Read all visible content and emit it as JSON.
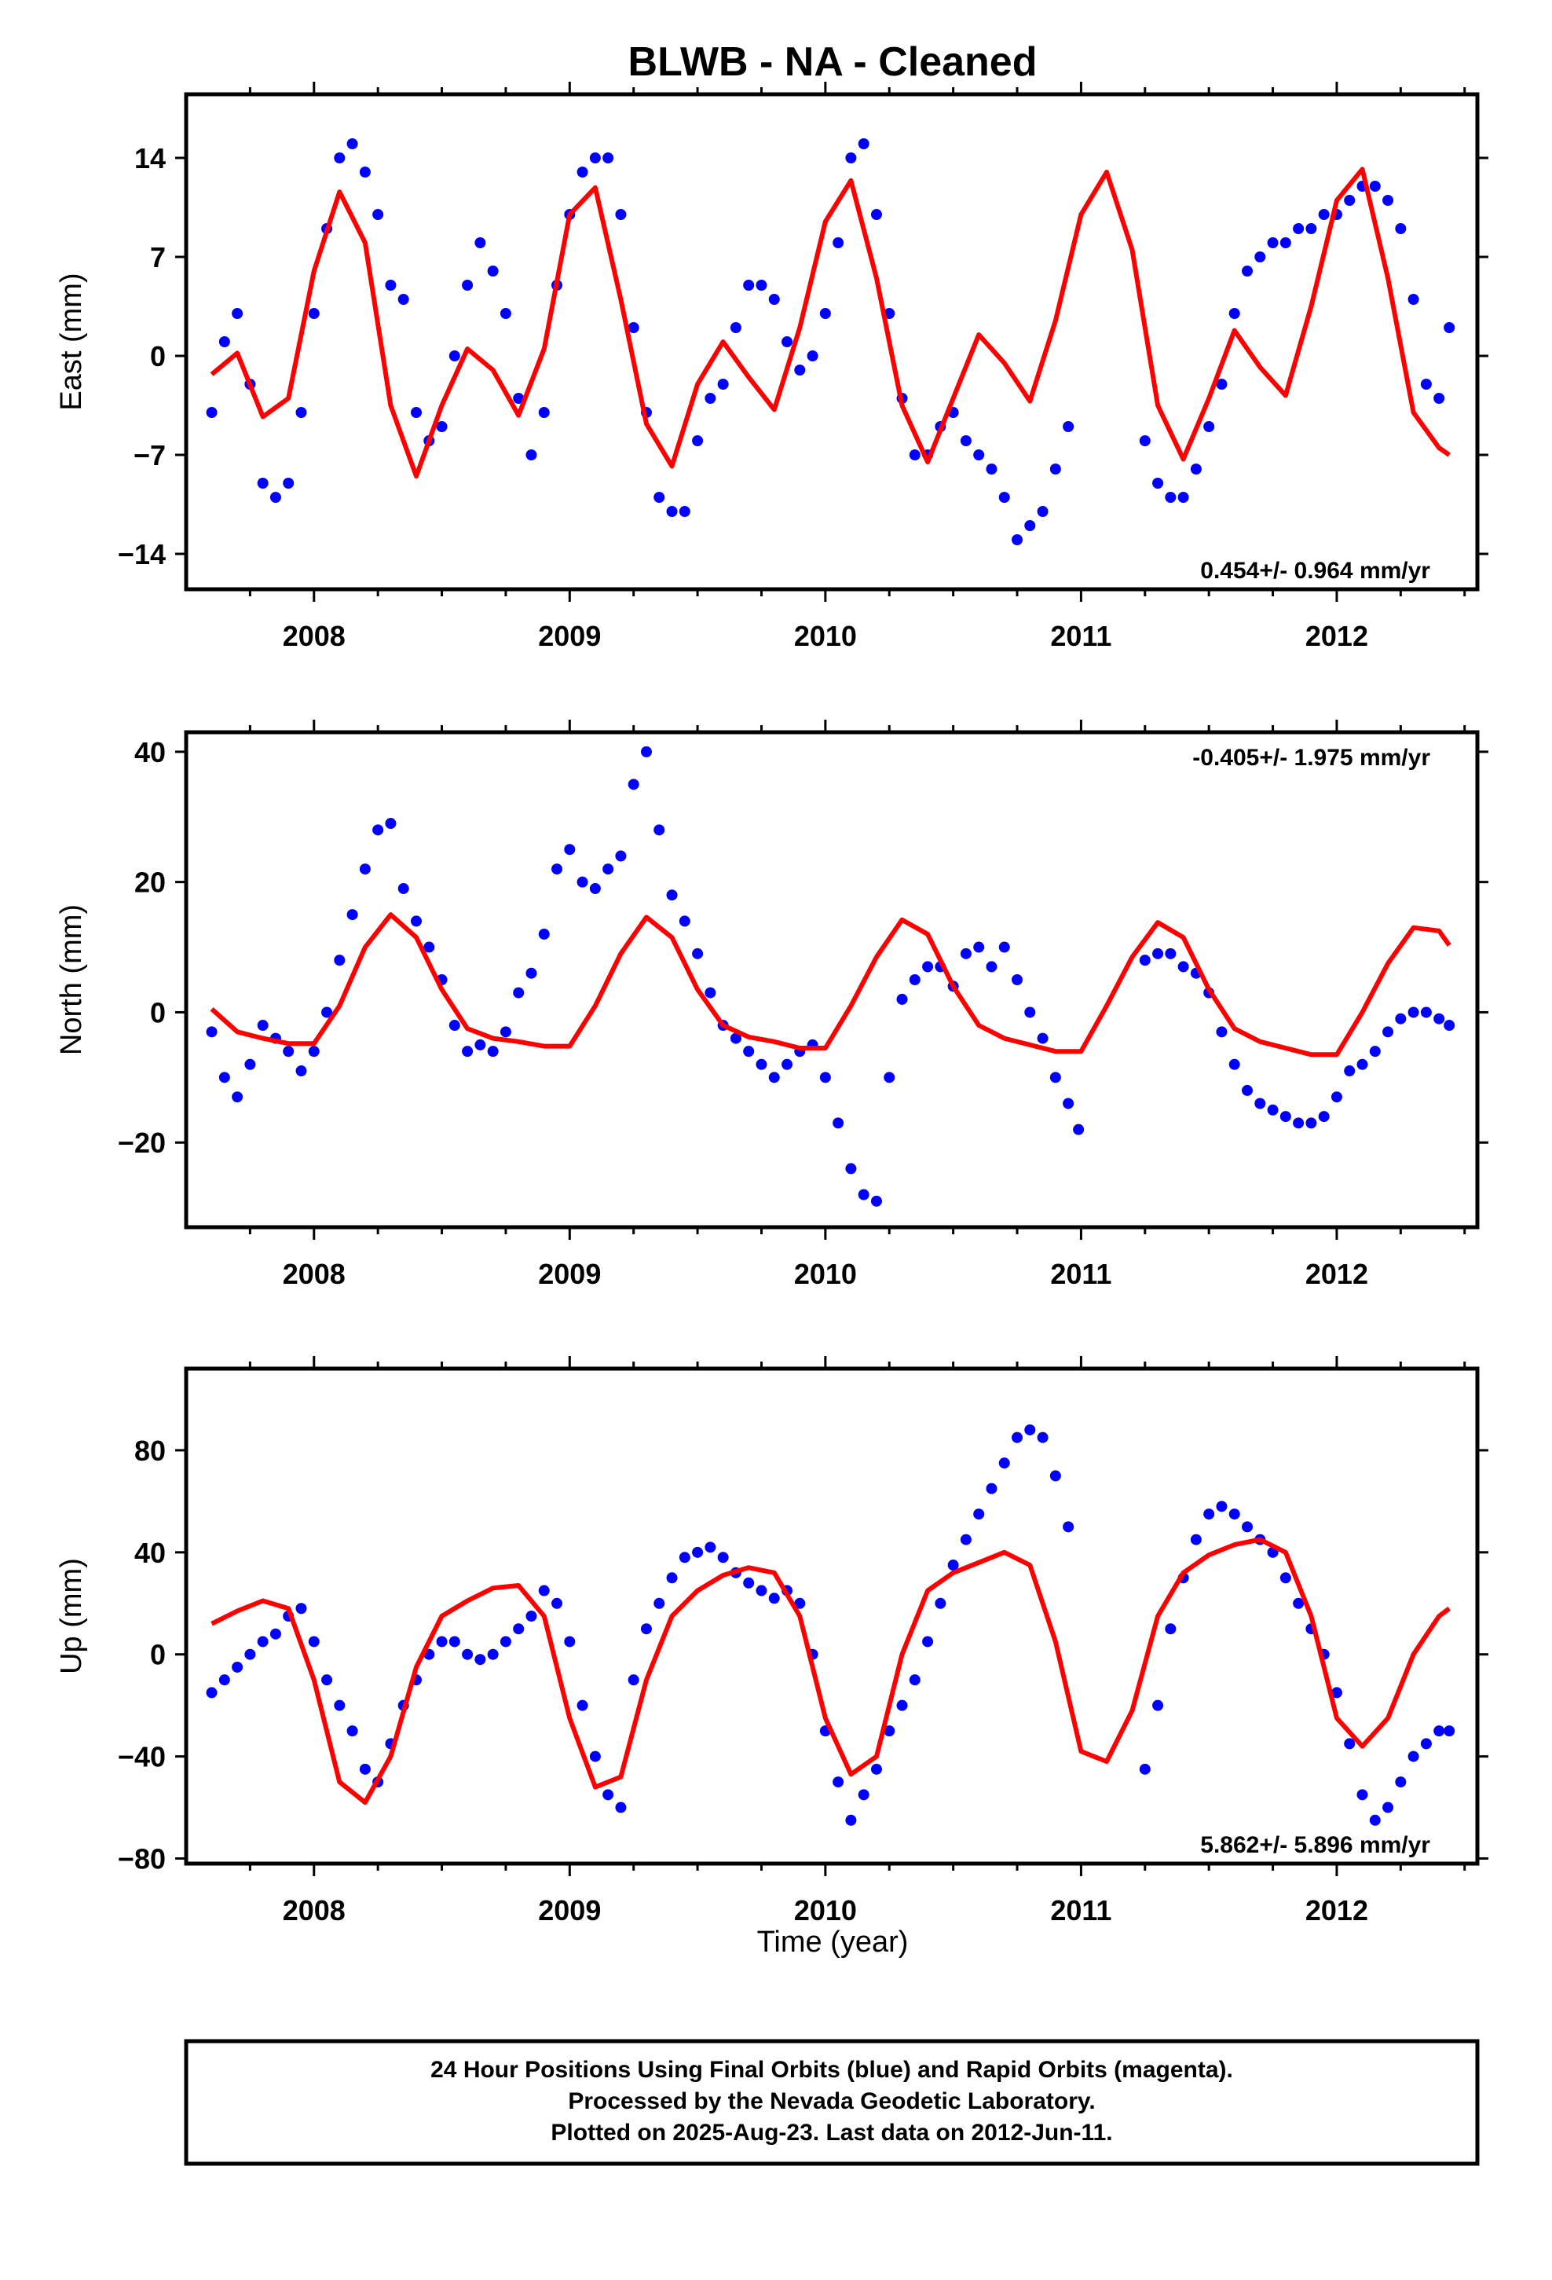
{
  "title": "BLWB  - NA - Cleaned",
  "colors": {
    "points": "#0000ff",
    "fit": "#ff0000",
    "frame": "#000000"
  },
  "footer": {
    "line1": "24 Hour Positions Using Final Orbits (blue) and Rapid Orbits (magenta).",
    "line2": "Processed by the Nevada Geodetic Laboratory.",
    "line3": "Plotted on 2025-Aug-23. Last data on 2012-Jun-11."
  },
  "chart_data": [
    {
      "type": "scatter",
      "title": "BLWB  - NA - Cleaned",
      "xlabel": "",
      "ylabel": "East (mm)",
      "xlim": [
        2007.5,
        2012.55
      ],
      "ylim": [
        -16.5,
        18.5
      ],
      "xticks": [
        2008,
        2009,
        2010,
        2011,
        2012
      ],
      "xtick_labels": [
        "2008",
        "2009",
        "2010",
        "2011",
        "2012"
      ],
      "yticks": [
        -14,
        -7,
        0,
        7,
        14
      ],
      "ytick_labels": [
        "−14",
        "−7",
        "0",
        "7",
        "14"
      ],
      "rate_label": "0.454+/- 0.964 mm/yr",
      "rate_position": "bottom-right",
      "series": [
        {
          "kind": "points",
          "x": [
            2007.6,
            2007.65,
            2007.7,
            2007.75,
            2007.8,
            2007.85,
            2007.9,
            2007.95,
            2008.0,
            2008.05,
            2008.1,
            2008.15,
            2008.2,
            2008.25,
            2008.3,
            2008.35,
            2008.4,
            2008.45,
            2008.5,
            2008.55,
            2008.6,
            2008.65,
            2008.7,
            2008.75,
            2008.8,
            2008.85,
            2008.9,
            2008.95,
            2009.0,
            2009.05,
            2009.1,
            2009.15,
            2009.2,
            2009.25,
            2009.3,
            2009.35,
            2009.4,
            2009.45,
            2009.5,
            2009.55,
            2009.6,
            2009.65,
            2009.7,
            2009.75,
            2009.8,
            2009.85,
            2009.9,
            2009.95,
            2010.0,
            2010.05,
            2010.1,
            2010.15,
            2010.2,
            2010.25,
            2010.3,
            2010.35,
            2010.4,
            2010.45,
            2010.5,
            2010.55,
            2010.6,
            2010.65,
            2010.7,
            2010.75,
            2010.8,
            2010.85,
            2010.9,
            2010.95,
            2011.25,
            2011.3,
            2011.35,
            2011.4,
            2011.45,
            2011.5,
            2011.55,
            2011.6,
            2011.65,
            2011.7,
            2011.75,
            2011.8,
            2011.85,
            2011.9,
            2011.95,
            2012.0,
            2012.05,
            2012.1,
            2012.15,
            2012.2,
            2012.25,
            2012.3,
            2012.35,
            2012.4,
            2012.44
          ],
          "y": [
            -4,
            1,
            3,
            -2,
            -9,
            -10,
            -9,
            -4,
            3,
            9,
            14,
            15,
            13,
            10,
            5,
            4,
            -4,
            -6,
            -5,
            0,
            5,
            8,
            6,
            3,
            -3,
            -7,
            -4,
            5,
            10,
            13,
            14,
            14,
            10,
            2,
            -4,
            -10,
            -11,
            -11,
            -6,
            -3,
            -2,
            2,
            5,
            5,
            4,
            1,
            -1,
            0,
            3,
            8,
            14,
            15,
            10,
            3,
            -3,
            -7,
            -7,
            -5,
            -4,
            -6,
            -7,
            -8,
            -10,
            -13,
            -12,
            -11,
            -8,
            -5,
            -6,
            -9,
            -10,
            -10,
            -8,
            -5,
            -2,
            3,
            6,
            7,
            8,
            8,
            9,
            9,
            10,
            10,
            11,
            12,
            12,
            11,
            9,
            4,
            -2,
            -3,
            2
          ]
        },
        {
          "kind": "fit",
          "x": [
            2007.6,
            2007.7,
            2007.8,
            2007.9,
            2008.0,
            2008.1,
            2008.2,
            2008.3,
            2008.4,
            2008.5,
            2008.6,
            2008.7,
            2008.8,
            2008.9,
            2009.0,
            2009.1,
            2009.2,
            2009.3,
            2009.4,
            2009.5,
            2009.6,
            2009.7,
            2009.8,
            2009.9,
            2010.0,
            2010.1,
            2010.2,
            2010.3,
            2010.4,
            2010.5,
            2010.6,
            2010.7,
            2010.8,
            2010.9,
            2011.0,
            2011.1,
            2011.2,
            2011.3,
            2011.4,
            2011.5,
            2011.6,
            2011.7,
            2011.8,
            2011.9,
            2012.0,
            2012.1,
            2012.2,
            2012.3,
            2012.4,
            2012.44
          ],
          "y": [
            -1.3,
            0.2,
            -4.3,
            -3.0,
            6.0,
            11.6,
            8.0,
            -3.5,
            -8.5,
            -3.5,
            0.5,
            -1.0,
            -4.2,
            0.5,
            10.0,
            11.9,
            4.0,
            -4.8,
            -7.8,
            -2.0,
            1.0,
            -1.5,
            -3.8,
            2.0,
            9.5,
            12.4,
            5.5,
            -3.5,
            -7.5,
            -3.0,
            1.5,
            -0.5,
            -3.2,
            2.5,
            10.0,
            13.0,
            7.5,
            -3.5,
            -7.3,
            -3.0,
            1.8,
            -0.8,
            -2.8,
            3.5,
            11.0,
            13.2,
            5.5,
            -4.0,
            -6.5,
            -7.0
          ]
        }
      ]
    },
    {
      "type": "scatter",
      "title": "",
      "xlabel": "",
      "ylabel": "North (mm)",
      "xlim": [
        2007.5,
        2012.55
      ],
      "ylim": [
        -33,
        43
      ],
      "xticks": [
        2008,
        2009,
        2010,
        2011,
        2012
      ],
      "xtick_labels": [
        "2008",
        "2009",
        "2010",
        "2011",
        "2012"
      ],
      "yticks": [
        -20,
        0,
        20,
        40
      ],
      "ytick_labels": [
        "−20",
        "0",
        "20",
        "40"
      ],
      "rate_label": "-0.405+/- 1.975 mm/yr",
      "rate_position": "top-right",
      "series": [
        {
          "kind": "points",
          "x": [
            2007.6,
            2007.65,
            2007.7,
            2007.75,
            2007.8,
            2007.85,
            2007.9,
            2007.95,
            2008.0,
            2008.05,
            2008.1,
            2008.15,
            2008.2,
            2008.25,
            2008.3,
            2008.35,
            2008.4,
            2008.45,
            2008.5,
            2008.55,
            2008.6,
            2008.65,
            2008.7,
            2008.75,
            2008.8,
            2008.85,
            2008.9,
            2008.95,
            2009.0,
            2009.05,
            2009.1,
            2009.15,
            2009.2,
            2009.25,
            2009.3,
            2009.35,
            2009.4,
            2009.45,
            2009.5,
            2009.55,
            2009.6,
            2009.65,
            2009.7,
            2009.75,
            2009.8,
            2009.85,
            2009.9,
            2009.95,
            2010.0,
            2010.05,
            2010.1,
            2010.15,
            2010.2,
            2010.25,
            2010.3,
            2010.35,
            2010.4,
            2010.45,
            2010.5,
            2010.55,
            2010.6,
            2010.65,
            2010.7,
            2010.75,
            2010.8,
            2010.85,
            2010.9,
            2010.95,
            2010.99,
            2011.25,
            2011.3,
            2011.35,
            2011.4,
            2011.45,
            2011.5,
            2011.55,
            2011.6,
            2011.65,
            2011.7,
            2011.75,
            2011.8,
            2011.85,
            2011.9,
            2011.95,
            2012.0,
            2012.05,
            2012.1,
            2012.15,
            2012.2,
            2012.25,
            2012.3,
            2012.35,
            2012.4,
            2012.44
          ],
          "y": [
            -3,
            -10,
            -13,
            -8,
            -2,
            -4,
            -6,
            -9,
            -6,
            0,
            8,
            15,
            22,
            28,
            29,
            19,
            14,
            10,
            5,
            -2,
            -6,
            -5,
            -6,
            -3,
            3,
            6,
            12,
            22,
            25,
            20,
            19,
            22,
            24,
            35,
            40,
            28,
            18,
            14,
            9,
            3,
            -2,
            -4,
            -6,
            -8,
            -10,
            -8,
            -6,
            -5,
            -10,
            -17,
            -24,
            -28,
            -29,
            -10,
            2,
            5,
            7,
            7,
            4,
            9,
            10,
            7,
            10,
            5,
            0,
            -4,
            -10,
            -14,
            -18,
            8,
            9,
            9,
            7,
            6,
            3,
            -3,
            -8,
            -12,
            -14,
            -15,
            -16,
            -17,
            -17,
            -16,
            -13,
            -9,
            -8,
            -6,
            -3,
            -1,
            0,
            0,
            -1,
            -2
          ]
        },
        {
          "kind": "fit",
          "x": [
            2007.6,
            2007.7,
            2007.8,
            2007.9,
            2008.0,
            2008.1,
            2008.2,
            2008.3,
            2008.4,
            2008.5,
            2008.6,
            2008.7,
            2008.8,
            2008.9,
            2009.0,
            2009.1,
            2009.2,
            2009.3,
            2009.4,
            2009.5,
            2009.6,
            2009.7,
            2009.8,
            2009.9,
            2010.0,
            2010.1,
            2010.2,
            2010.3,
            2010.4,
            2010.5,
            2010.6,
            2010.7,
            2010.8,
            2010.9,
            2011.0,
            2011.1,
            2011.2,
            2011.3,
            2011.4,
            2011.5,
            2011.6,
            2011.7,
            2011.8,
            2011.9,
            2012.0,
            2012.1,
            2012.2,
            2012.3,
            2012.4,
            2012.44
          ],
          "y": [
            0.5,
            -3.0,
            -4.0,
            -4.8,
            -4.8,
            1.0,
            10.0,
            15.0,
            11.5,
            3.5,
            -2.5,
            -4.0,
            -4.5,
            -5.2,
            -5.2,
            1.0,
            9.0,
            14.6,
            11.5,
            3.5,
            -2.0,
            -3.8,
            -4.5,
            -5.5,
            -5.5,
            1.0,
            8.5,
            14.2,
            12.0,
            4.0,
            -2.0,
            -4.0,
            -5.0,
            -6.0,
            -6.0,
            1.0,
            8.5,
            13.8,
            11.5,
            3.5,
            -2.5,
            -4.5,
            -5.5,
            -6.5,
            -6.5,
            0.0,
            7.5,
            13.0,
            12.5,
            10.3
          ]
        }
      ]
    },
    {
      "type": "scatter",
      "title": "",
      "xlabel": "Time (year)",
      "ylabel": "Up (mm)",
      "xlim": [
        2007.5,
        2012.55
      ],
      "ylim": [
        -82,
        112
      ],
      "xticks": [
        2008,
        2009,
        2010,
        2011,
        2012
      ],
      "xtick_labels": [
        "2008",
        "2009",
        "2010",
        "2011",
        "2012"
      ],
      "yticks": [
        -80,
        -40,
        0,
        40,
        80
      ],
      "ytick_labels": [
        "−80",
        "−40",
        "0",
        "40",
        "80"
      ],
      "rate_label": "5.862+/- 5.896 mm/yr",
      "rate_position": "bottom-right",
      "series": [
        {
          "kind": "points",
          "x": [
            2007.6,
            2007.65,
            2007.7,
            2007.75,
            2007.8,
            2007.85,
            2007.9,
            2007.95,
            2008.0,
            2008.05,
            2008.1,
            2008.15,
            2008.2,
            2008.25,
            2008.3,
            2008.35,
            2008.4,
            2008.45,
            2008.5,
            2008.55,
            2008.6,
            2008.65,
            2008.7,
            2008.75,
            2008.8,
            2008.85,
            2008.9,
            2008.95,
            2009.0,
            2009.05,
            2009.1,
            2009.15,
            2009.2,
            2009.25,
            2009.3,
            2009.35,
            2009.4,
            2009.45,
            2009.5,
            2009.55,
            2009.6,
            2009.65,
            2009.7,
            2009.75,
            2009.8,
            2009.85,
            2009.9,
            2009.95,
            2010.0,
            2010.05,
            2010.1,
            2010.15,
            2010.2,
            2010.25,
            2010.3,
            2010.35,
            2010.4,
            2010.45,
            2010.5,
            2010.55,
            2010.6,
            2010.65,
            2010.7,
            2010.75,
            2010.8,
            2010.85,
            2010.9,
            2010.95,
            2011.25,
            2011.3,
            2011.35,
            2011.4,
            2011.45,
            2011.5,
            2011.55,
            2011.6,
            2011.65,
            2011.7,
            2011.75,
            2011.8,
            2011.85,
            2011.9,
            2011.95,
            2012.0,
            2012.05,
            2012.1,
            2012.15,
            2012.2,
            2012.25,
            2012.3,
            2012.35,
            2012.4,
            2012.44
          ],
          "y": [
            -15,
            -10,
            -5,
            0,
            5,
            8,
            15,
            18,
            5,
            -10,
            -20,
            -30,
            -45,
            -50,
            -35,
            -20,
            -10,
            0,
            5,
            5,
            0,
            -2,
            0,
            5,
            10,
            15,
            25,
            20,
            5,
            -20,
            -40,
            -55,
            -60,
            -10,
            10,
            20,
            30,
            38,
            40,
            42,
            38,
            32,
            28,
            25,
            22,
            25,
            20,
            0,
            -30,
            -50,
            -65,
            -55,
            -45,
            -30,
            -20,
            -10,
            5,
            20,
            35,
            45,
            55,
            65,
            75,
            85,
            88,
            85,
            70,
            50,
            -45,
            -20,
            10,
            30,
            45,
            55,
            58,
            55,
            50,
            45,
            40,
            30,
            20,
            10,
            0,
            -15,
            -35,
            -55,
            -65,
            -60,
            -50,
            -40,
            -35,
            -30,
            -30
          ]
        },
        {
          "kind": "fit",
          "x": [
            2007.6,
            2007.7,
            2007.8,
            2007.9,
            2008.0,
            2008.1,
            2008.2,
            2008.3,
            2008.4,
            2008.5,
            2008.6,
            2008.7,
            2008.8,
            2008.9,
            2009.0,
            2009.1,
            2009.2,
            2009.3,
            2009.4,
            2009.5,
            2009.6,
            2009.7,
            2009.8,
            2009.9,
            2010.0,
            2010.1,
            2010.2,
            2010.3,
            2010.4,
            2010.5,
            2010.6,
            2010.7,
            2010.8,
            2010.9,
            2011.0,
            2011.1,
            2011.2,
            2011.3,
            2011.4,
            2011.5,
            2011.6,
            2011.7,
            2011.8,
            2011.9,
            2012.0,
            2012.1,
            2012.2,
            2012.3,
            2012.4,
            2012.44
          ],
          "y": [
            12,
            17,
            21,
            18,
            -10,
            -50,
            -58,
            -40,
            -5,
            15,
            21,
            26,
            27,
            15,
            -25,
            -52,
            -48,
            -10,
            15,
            25,
            31,
            34,
            32,
            15,
            -25,
            -47,
            -40,
            0,
            25,
            32,
            36,
            40,
            35,
            5,
            -38,
            -42,
            -22,
            15,
            32,
            39,
            43,
            45,
            40,
            15,
            -25,
            -36,
            -25,
            0,
            15,
            18
          ]
        }
      ]
    }
  ]
}
